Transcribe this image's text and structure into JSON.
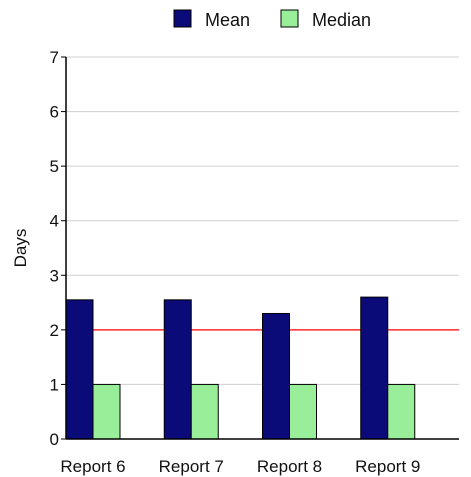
{
  "chart_data": {
    "type": "bar",
    "title": "",
    "xlabel": "",
    "ylabel": "Days",
    "categories": [
      "Report 6",
      "Report 7",
      "Report 8",
      "Report 9"
    ],
    "series": [
      {
        "name": "Mean",
        "color": "#0a0a78",
        "values": [
          2.55,
          2.55,
          2.3,
          2.6
        ]
      },
      {
        "name": "Median",
        "color": "#99ee99",
        "values": [
          1,
          1,
          1,
          1
        ]
      }
    ],
    "reference_line": {
      "value": 2,
      "color": "#ff2a2a"
    },
    "ylim": [
      0,
      7
    ],
    "yticks": [
      0,
      1,
      2,
      3,
      4,
      5,
      6,
      7
    ],
    "grid": true,
    "legend_position": "top-center"
  }
}
